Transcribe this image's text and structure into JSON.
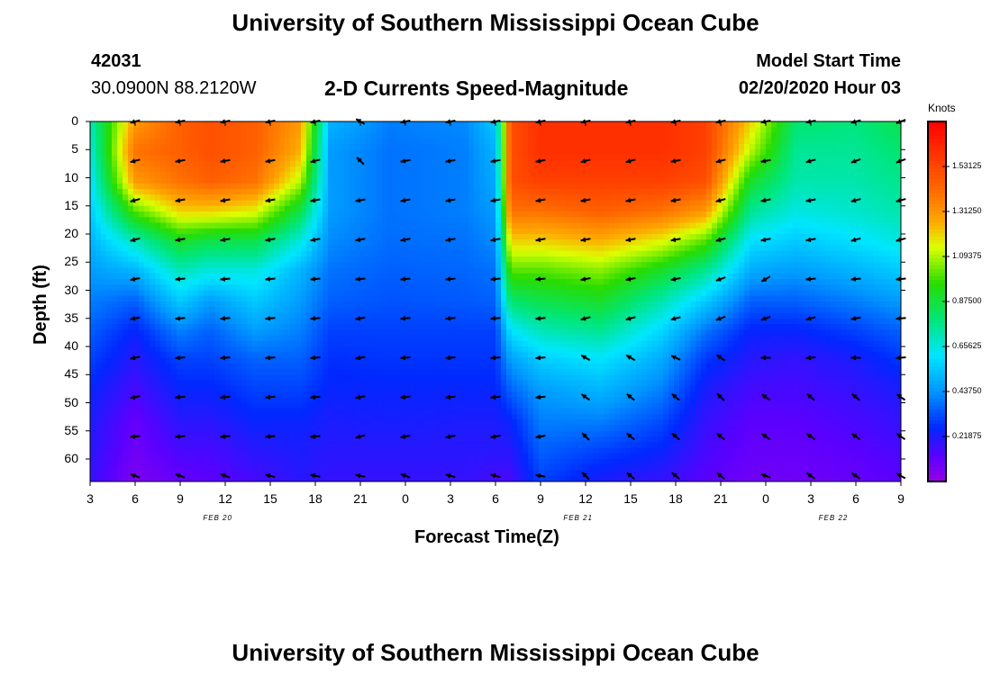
{
  "header": {
    "title_top": "University of Southern Mississippi Ocean Cube",
    "station_id": "42031",
    "station_coords": "30.0900N 88.2120W",
    "plot_title": "2-D Currents Speed-Magnitude",
    "model_start_label": "Model Start Time",
    "model_start_value": "02/20/2020 Hour 03",
    "title_bottom": "University of Southern Mississippi Ocean Cube"
  },
  "chart_data": {
    "type": "heatmap",
    "title": "2-D Currents Speed-Magnitude",
    "xlabel": "Forecast Time(Z)",
    "ylabel": "Depth (ft)",
    "x_tick_labels": [
      "3",
      "6",
      "9",
      "12",
      "15",
      "18",
      "21",
      "0",
      "3",
      "6",
      "9",
      "12",
      "15",
      "18",
      "21",
      "0",
      "3",
      "6",
      "9"
    ],
    "x_date_labels": [
      "FEB 20",
      "FEB 21",
      "FEB 22"
    ],
    "y_tick_labels": [
      "0",
      "5",
      "10",
      "15",
      "20",
      "25",
      "30",
      "35",
      "40",
      "45",
      "50",
      "55",
      "60"
    ],
    "ylim": [
      0,
      64
    ],
    "colorbar": {
      "label": "Knots",
      "tick_labels": [
        "1.53125",
        "1.31250",
        "1.09375",
        "0.87500",
        "0.65625",
        "0.43750",
        "0.21875"
      ],
      "range": [
        0,
        1.75
      ]
    },
    "speed_keyframes": [
      {
        "t": 0,
        "v": [
          0.7,
          0.65,
          0.6,
          0.55,
          0.5,
          0.45,
          0.4,
          0.35,
          0.3,
          0.25,
          0.22,
          0.2,
          0.18
        ]
      },
      {
        "t": 3,
        "v": [
          1.3,
          1.4,
          1.3,
          1.0,
          0.7,
          0.5,
          0.35,
          0.25,
          0.2,
          0.15,
          0.1,
          0.08,
          0.05
        ]
      },
      {
        "t": 6,
        "v": [
          1.45,
          1.45,
          1.4,
          1.2,
          0.9,
          0.7,
          0.55,
          0.4,
          0.3,
          0.25,
          0.2,
          0.15,
          0.1
        ]
      },
      {
        "t": 8,
        "v": [
          1.5,
          1.5,
          1.45,
          1.2,
          0.85,
          0.65,
          0.45,
          0.35,
          0.3,
          0.25,
          0.2,
          0.15,
          0.12
        ]
      },
      {
        "t": 11,
        "v": [
          1.45,
          1.45,
          1.4,
          1.15,
          0.85,
          0.65,
          0.55,
          0.45,
          0.35,
          0.3,
          0.25,
          0.2,
          0.15
        ]
      },
      {
        "t": 14,
        "v": [
          1.3,
          1.25,
          1.1,
          0.85,
          0.65,
          0.5,
          0.45,
          0.4,
          0.35,
          0.3,
          0.25,
          0.22,
          0.2
        ]
      },
      {
        "t": 16,
        "v": [
          0.5,
          0.45,
          0.45,
          0.45,
          0.42,
          0.38,
          0.35,
          0.3,
          0.27,
          0.25,
          0.22,
          0.2,
          0.18
        ]
      },
      {
        "t": 20,
        "v": [
          0.4,
          0.38,
          0.38,
          0.38,
          0.37,
          0.35,
          0.33,
          0.3,
          0.28,
          0.25,
          0.23,
          0.2,
          0.18
        ]
      },
      {
        "t": 25,
        "v": [
          0.42,
          0.4,
          0.4,
          0.4,
          0.38,
          0.36,
          0.34,
          0.3,
          0.28,
          0.25,
          0.22,
          0.2,
          0.18
        ]
      },
      {
        "t": 27,
        "v": [
          0.55,
          0.5,
          0.48,
          0.45,
          0.42,
          0.38,
          0.35,
          0.3,
          0.28,
          0.25,
          0.22,
          0.2,
          0.15
        ]
      },
      {
        "t": 28,
        "v": [
          1.5,
          1.5,
          1.5,
          1.4,
          1.2,
          1.0,
          0.8,
          0.6,
          0.45,
          0.35,
          0.25,
          0.2,
          0.15
        ]
      },
      {
        "t": 30,
        "v": [
          1.6,
          1.6,
          1.55,
          1.4,
          1.2,
          1.0,
          0.85,
          0.7,
          0.55,
          0.45,
          0.4,
          0.35,
          0.3
        ]
      },
      {
        "t": 34,
        "v": [
          1.6,
          1.6,
          1.55,
          1.45,
          1.25,
          1.05,
          0.9,
          0.75,
          0.6,
          0.5,
          0.4,
          0.3,
          0.22
        ]
      },
      {
        "t": 38,
        "v": [
          1.6,
          1.6,
          1.55,
          1.4,
          1.15,
          0.9,
          0.72,
          0.58,
          0.48,
          0.4,
          0.32,
          0.25,
          0.18
        ]
      },
      {
        "t": 41,
        "v": [
          1.55,
          1.55,
          1.5,
          1.3,
          1.0,
          0.75,
          0.55,
          0.38,
          0.28,
          0.22,
          0.18,
          0.15,
          0.12
        ]
      },
      {
        "t": 44,
        "v": [
          1.2,
          1.1,
          0.9,
          0.75,
          0.6,
          0.48,
          0.35,
          0.25,
          0.2,
          0.15,
          0.12,
          0.1,
          0.08
        ]
      },
      {
        "t": 47,
        "v": [
          0.8,
          0.75,
          0.72,
          0.65,
          0.55,
          0.45,
          0.35,
          0.25,
          0.18,
          0.15,
          0.12,
          0.1,
          0.08
        ]
      },
      {
        "t": 51,
        "v": [
          0.78,
          0.75,
          0.72,
          0.68,
          0.6,
          0.5,
          0.4,
          0.3,
          0.22,
          0.18,
          0.15,
          0.12,
          0.1
        ]
      },
      {
        "t": 54,
        "v": [
          0.85,
          0.8,
          0.76,
          0.72,
          0.65,
          0.55,
          0.45,
          0.35,
          0.28,
          0.22,
          0.18,
          0.15,
          0.12
        ]
      }
    ],
    "arrow_rows_depth": [
      0,
      7,
      14,
      21,
      28,
      35,
      42,
      49,
      56,
      63
    ],
    "arrow_columns_time": [
      3,
      6,
      9,
      12,
      15,
      18,
      21,
      24,
      27,
      30,
      33,
      36,
      39,
      42,
      45,
      48,
      51,
      54
    ],
    "arrow_direction_deg": [
      [
        195,
        190,
        190,
        190,
        190,
        150,
        190,
        190,
        190,
        190,
        190,
        190,
        190,
        190,
        190,
        190,
        195,
        200
      ],
      [
        195,
        190,
        190,
        190,
        195,
        135,
        190,
        190,
        190,
        190,
        195,
        195,
        190,
        195,
        190,
        195,
        200,
        200
      ],
      [
        195,
        190,
        190,
        190,
        190,
        190,
        190,
        190,
        190,
        190,
        190,
        190,
        190,
        195,
        190,
        190,
        195,
        195
      ],
      [
        195,
        190,
        190,
        190,
        190,
        190,
        190,
        190,
        190,
        190,
        190,
        190,
        190,
        195,
        190,
        190,
        195,
        195
      ],
      [
        190,
        185,
        185,
        185,
        185,
        185,
        185,
        185,
        185,
        185,
        190,
        190,
        190,
        200,
        210,
        185,
        185,
        185
      ],
      [
        190,
        185,
        185,
        185,
        185,
        190,
        185,
        185,
        185,
        185,
        195,
        195,
        195,
        200,
        200,
        195,
        190,
        185
      ],
      [
        190,
        185,
        185,
        185,
        185,
        190,
        185,
        185,
        185,
        185,
        150,
        150,
        155,
        145,
        180,
        185,
        180,
        185
      ],
      [
        190,
        185,
        185,
        185,
        185,
        190,
        185,
        185,
        185,
        185,
        145,
        140,
        140,
        135,
        145,
        140,
        140,
        145
      ],
      [
        185,
        185,
        185,
        185,
        185,
        195,
        190,
        190,
        190,
        190,
        135,
        140,
        140,
        140,
        145,
        145,
        145,
        145
      ],
      [
        160,
        160,
        160,
        165,
        170,
        170,
        160,
        165,
        165,
        170,
        135,
        140,
        140,
        140,
        160,
        145,
        145,
        150
      ]
    ]
  }
}
